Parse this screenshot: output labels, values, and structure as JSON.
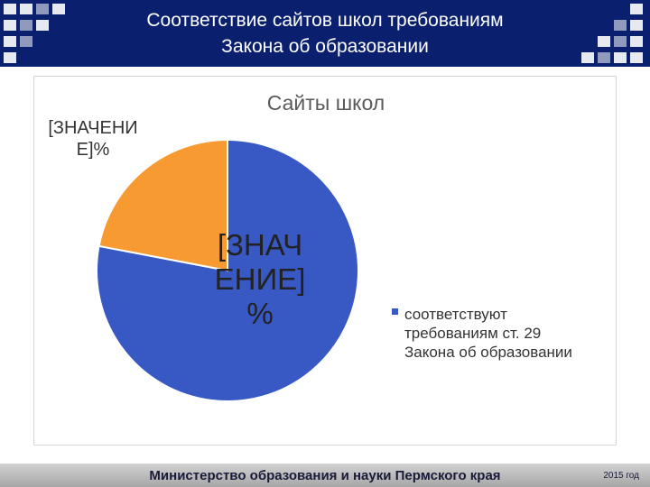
{
  "header": {
    "title_line1": "Соответствие сайтов школ требованиям",
    "title_line2": "Закона об образовании"
  },
  "chart_data": {
    "type": "pie",
    "title": "Сайты школ",
    "slices": [
      {
        "value": 78,
        "label_text": "[ЗНАЧЕНИЕ] %",
        "color": "#3858c4"
      },
      {
        "value": 22,
        "label_text": "[ЗНАЧЕНИЕ]%",
        "color": "#f89a32"
      }
    ],
    "legend": [
      {
        "text": "соответствуют требованиям ст. 29 Закона об образовании",
        "color": "#3858c4"
      }
    ],
    "legend_position": "right"
  },
  "chart_labels": {
    "orange_line1": "[ЗНАЧЕНИ",
    "orange_line2": "Е]%",
    "blue_line1": "[ЗНАЧ",
    "blue_line2": "ЕНИЕ]",
    "blue_line3": "%"
  },
  "footer": {
    "ministry": "Министерство образования и науки Пермского края",
    "year": "2015 год"
  },
  "colors": {
    "header_bg": "#0a1f6e",
    "blue_slice": "#3858c4",
    "orange_slice": "#f89a32"
  }
}
